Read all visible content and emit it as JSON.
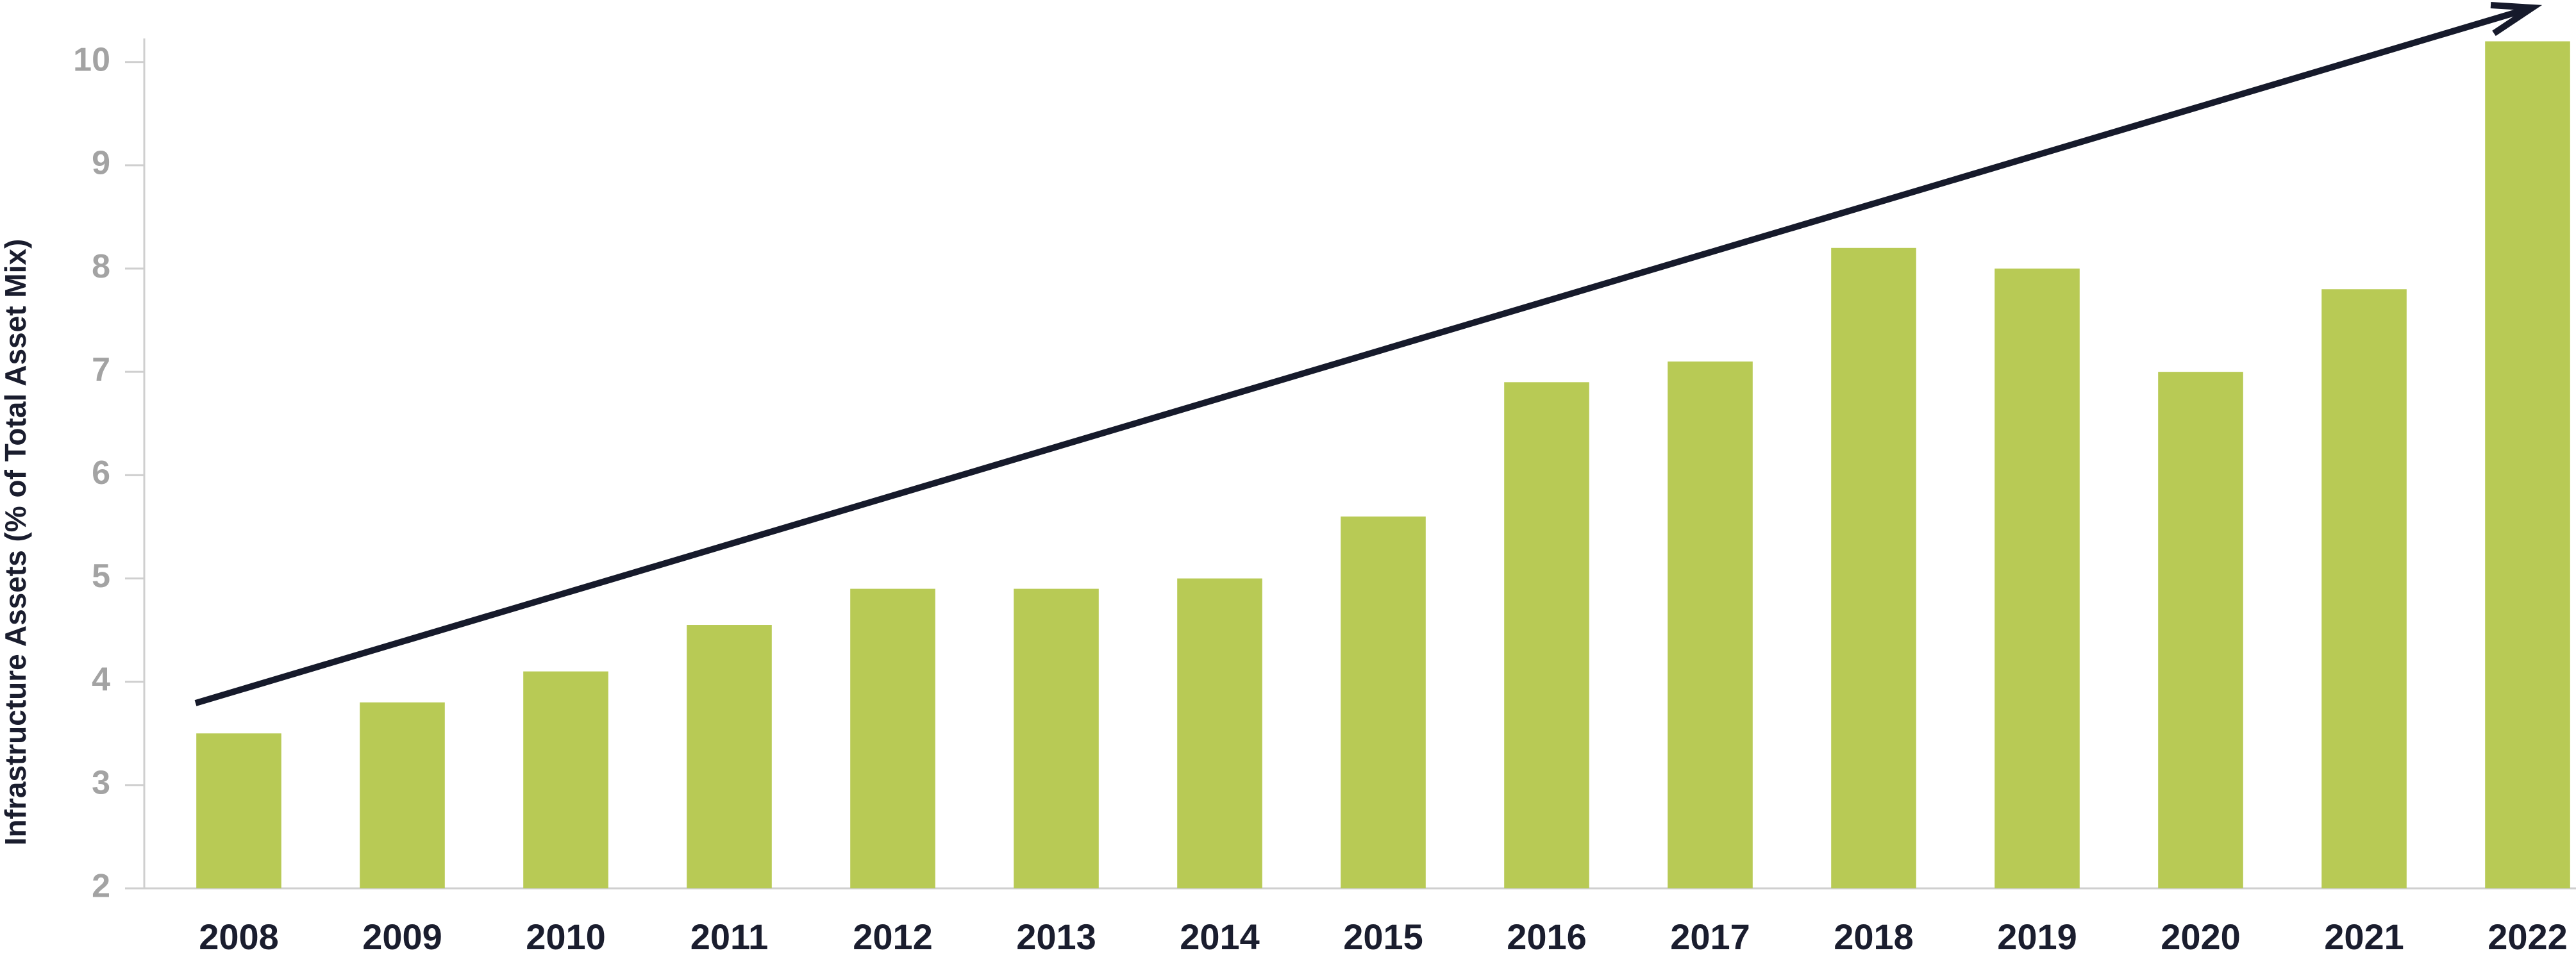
{
  "chart_data": {
    "type": "bar",
    "y_label": "Infrastructure Assets (% of Total Asset Mix)",
    "categories": [
      "2008",
      "2009",
      "2010",
      "2011",
      "2012",
      "2013",
      "2014",
      "2015",
      "2016",
      "2017",
      "2018",
      "2019",
      "2020",
      "2021",
      "2022"
    ],
    "values": [
      3.5,
      3.8,
      4.1,
      4.55,
      4.9,
      4.9,
      5.0,
      5.6,
      6.9,
      7.1,
      8.2,
      8.0,
      7.0,
      7.8,
      10.2
    ],
    "color": "#b8ca55",
    "ylim": [
      2,
      10.6
    ],
    "yticks": [
      2,
      3,
      4,
      5,
      6,
      7,
      8,
      9,
      10
    ],
    "grid": false
  }
}
